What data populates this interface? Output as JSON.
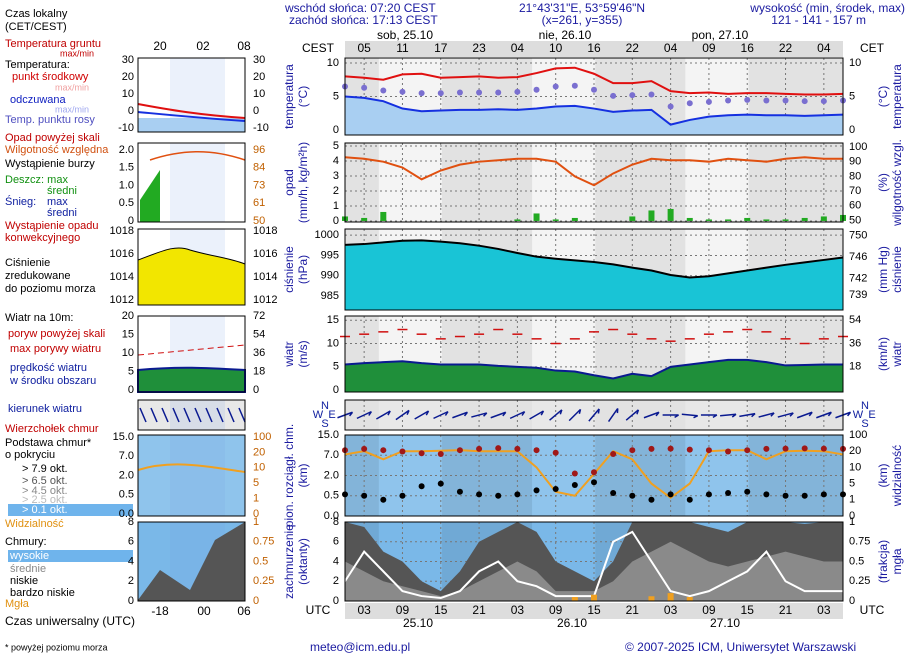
{
  "header": {
    "sunrise": "wschód słońca: 07:20 CEST",
    "sunset": "zachód słońca: 17:13 CEST",
    "coords": "21°43'31\"E, 53°59'46\"N",
    "grid": "(x=261, y=355)",
    "elev_title": "wysokość (min, środek, max)",
    "elev": "121 - 141 - 157 m"
  },
  "time_axis": {
    "local_label": "CEST",
    "local_label_right": "CET",
    "local": [
      "05",
      "11",
      "17",
      "23",
      "04",
      "10",
      "16",
      "22",
      "04",
      "09",
      "16",
      "22",
      "04"
    ],
    "dates": [
      "sob, 25.10",
      "nie, 26.10",
      "pon, 27.10"
    ],
    "utc_label": "UTC",
    "utc": [
      "03",
      "09",
      "15",
      "21",
      "03",
      "09",
      "15",
      "21",
      "03",
      "09",
      "15",
      "21",
      "03"
    ],
    "utc_dates": [
      "25.10",
      "26.10",
      "27.10"
    ]
  },
  "chart_data": [
    {
      "type": "line",
      "ylabel": "temperatura",
      "yunit": "(°C)",
      "y2label": "temperatura",
      "y2unit": "(°C)",
      "ylim": [
        -0.75,
        10.75
      ],
      "yticks": [
        0,
        5,
        10
      ],
      "y2lim": [
        -0.75,
        10.75
      ],
      "y2ticks": [
        0,
        5,
        10
      ],
      "grid": true,
      "series": [
        {
          "style": "area",
          "color": "#a9cff2",
          "line_color": "#1530e0",
          "values": [
            5.0,
            4.8,
            4.3,
            3.2,
            2.8,
            2.9,
            3.0,
            3.0,
            3.1,
            3.0,
            3.2,
            3.5,
            3.6,
            3.2,
            2.7,
            2.9,
            3.0,
            0.8,
            1.5,
            2.0,
            2.2,
            2.3,
            2.2,
            2.2,
            2.1,
            2.2,
            2.3
          ]
        },
        {
          "style": "dots",
          "color": "#7a6fd0",
          "values": [
            6.5,
            6.3,
            5.9,
            5.7,
            5.5,
            5.5,
            5.6,
            5.6,
            5.6,
            5.7,
            6.0,
            6.5,
            6.6,
            6.0,
            5.1,
            5.2,
            5.3,
            3.5,
            4.0,
            4.2,
            4.4,
            4.5,
            4.4,
            4.4,
            4.3,
            4.3,
            4.4
          ]
        },
        {
          "style": "line",
          "color": "#e01010",
          "values": [
            8.0,
            7.8,
            7.5,
            8.3,
            8.4,
            7.8,
            7.9,
            8.0,
            7.8,
            7.9,
            8.5,
            9.2,
            9.3,
            8.4,
            7.0,
            7.0,
            7.3,
            5.8,
            5.5,
            5.6,
            5.4,
            5.5,
            5.5,
            5.4,
            5.3,
            5.3,
            5.4
          ]
        }
      ]
    },
    {
      "type": "combo",
      "ylabel": "opad",
      "yunit": "(mm/h, kg/m²h)",
      "y2label": "wilgotność wzgl.",
      "y2unit": "(%)",
      "ylim": [
        -0.07,
        5.2
      ],
      "yticks": [
        0,
        1,
        2,
        3,
        4,
        5
      ],
      "y2lim": [
        49,
        102.7
      ],
      "y2ticks": [
        50,
        60,
        70,
        80,
        90,
        100
      ],
      "grid": true,
      "series": [
        {
          "style": "bars",
          "color": "#22aa22",
          "values": [
            0.3,
            0.2,
            0.6,
            0,
            0,
            0,
            0,
            0,
            0,
            0.1,
            0.5,
            0.1,
            0.2,
            0,
            0,
            0.3,
            0.7,
            0.8,
            0.2,
            0.1,
            0.1,
            0.2,
            0.1,
            0.1,
            0.2,
            0.3,
            0.4
          ]
        },
        {
          "style": "line",
          "color": "#e05010",
          "axis": "y2",
          "values": [
            93,
            92,
            90,
            86,
            78,
            84,
            88,
            90,
            91,
            92,
            92,
            90,
            80,
            74,
            82,
            88,
            92,
            91,
            91,
            90,
            92,
            91,
            90,
            92,
            93,
            92,
            92
          ]
        }
      ]
    },
    {
      "type": "area",
      "ylabel": "ciśnienie",
      "yunit": "(hPa)",
      "y2label": "ciśnienie",
      "y2unit": "(mm Hg)",
      "ylim": [
        981.6,
        1001.5
      ],
      "yticks": [
        985,
        990,
        995,
        1000
      ],
      "y2lim": [
        736.2,
        751.2
      ],
      "y2ticks": [
        739,
        742,
        746,
        750
      ],
      "grid": true,
      "series": [
        {
          "style": "area",
          "color": "#19c4d6",
          "line_color": "#000000",
          "values": [
            997.6,
            997.8,
            998.2,
            998.6,
            998.7,
            998.4,
            998.0,
            997.4,
            996.6,
            995.6,
            994.7,
            994.2,
            993.8,
            993.4,
            992.8,
            992.0,
            991.3,
            990.2,
            989.6,
            989.9,
            990.6,
            991.3,
            992.0,
            992.7,
            993.3,
            993.9,
            994.5
          ]
        }
      ]
    },
    {
      "type": "line",
      "ylabel": "wiatr",
      "yunit": "(m/s)",
      "y2label": "wiatr",
      "y2unit": "(km/h)",
      "ylim": [
        -0.4,
        15.9
      ],
      "yticks": [
        0,
        5,
        10,
        15
      ],
      "y2lim": [
        -1.44,
        57.24
      ],
      "y2ticks": [
        18,
        36,
        54
      ],
      "grid": true,
      "series": [
        {
          "style": "area",
          "color": "#1f8f3a",
          "line_color": "#0a1a90",
          "values": [
            5.5,
            5.8,
            6.0,
            6.2,
            5.8,
            5.5,
            5.5,
            5.5,
            5.2,
            5.0,
            4.8,
            4.2,
            4.0,
            3.2,
            2.5,
            3.5,
            3.0,
            5.0,
            5.5,
            6.0,
            6.5,
            6.5,
            6.0,
            5.3,
            5.4,
            5.5,
            5.5
          ]
        },
        {
          "style": "dashes",
          "color": "#d01010",
          "values": [
            11.5,
            12,
            12.5,
            13,
            12,
            11,
            11.5,
            12,
            13,
            12,
            11,
            10,
            11,
            12.5,
            13,
            12,
            11,
            10.5,
            11,
            12,
            12.5,
            13,
            12.5,
            11,
            10,
            11,
            11.5
          ]
        }
      ]
    },
    {
      "type": "direction",
      "compass": [
        "N",
        "W",
        "E",
        "S"
      ],
      "series": [
        {
          "color": "#0a1a90",
          "values": [
            250,
            245,
            240,
            235,
            240,
            245,
            250,
            255,
            250,
            245,
            240,
            230,
            225,
            220,
            215,
            230,
            250,
            270,
            275,
            270,
            265,
            260,
            255,
            255,
            250,
            250,
            250
          ]
        }
      ]
    },
    {
      "type": "scatter",
      "ylabel": "pion. rozciągł. chm.",
      "yunit": "(km)",
      "y2label": "widzialność",
      "y2unit": "(km)",
      "scale": "piecewise",
      "ylim": [
        0,
        15
      ],
      "yticks": [
        {
          "value": 0,
          "label": "0.0"
        },
        0.5,
        {
          "value": 2,
          "label": "2.0"
        },
        {
          "value": 7,
          "label": "7.0"
        },
        {
          "value": 15,
          "label": "15.0"
        }
      ],
      "y2lim": [
        0,
        100
      ],
      "y2ticks": [
        0,
        1,
        5,
        10,
        20,
        100
      ],
      "grid": true,
      "series": [
        {
          "style": "line",
          "color": "#f0a020",
          "axis": "y2",
          "values": [
            18,
            20,
            15,
            20,
            20,
            22,
            25,
            20,
            20,
            20,
            10,
            3,
            2,
            8,
            20,
            15,
            5,
            1.5,
            5,
            20,
            25,
            25,
            15,
            20,
            22,
            20,
            18
          ]
        },
        {
          "style": "dots",
          "color": "#a01818",
          "values": [
            9,
            9.5,
            9,
            8.5,
            7.8,
            7.5,
            9,
            9.5,
            9.8,
            9.5,
            9,
            8,
            2.5,
            2.8,
            7.5,
            9,
            9.5,
            9.6,
            9.2,
            9,
            8.5,
            9,
            9.5,
            9.6,
            9.7,
            9.6,
            9.5
          ]
        },
        {
          "style": "dots",
          "color": "#000000",
          "values": [
            0.6,
            0.5,
            0.4,
            0.5,
            1.2,
            1.4,
            0.8,
            0.6,
            0.5,
            0.6,
            0.9,
            1.0,
            1.3,
            1.5,
            0.7,
            0.5,
            0.4,
            0.6,
            0.4,
            0.6,
            0.7,
            0.8,
            0.6,
            0.5,
            0.5,
            0.6,
            0.6
          ]
        }
      ]
    },
    {
      "type": "area",
      "ylabel": "zachmurzenie",
      "yunit": "(oktanty)",
      "y2label": "mgła",
      "y2unit": "(frakcja)",
      "ylim": [
        0,
        8
      ],
      "yticks": [
        0,
        2,
        4,
        6,
        8
      ],
      "y2lim": [
        0,
        1
      ],
      "y2ticks": [
        0,
        0.25,
        0.5,
        0.75,
        1
      ],
      "grid": true,
      "series": [
        {
          "style": "area",
          "color": "#555555",
          "values": [
            8,
            7.5,
            5,
            4,
            2,
            1,
            3,
            6,
            7,
            8,
            7,
            4,
            3,
            2,
            4,
            8,
            8,
            8,
            8,
            7.5,
            7,
            8,
            8,
            8,
            7.8,
            8,
            8
          ]
        },
        {
          "style": "area",
          "color": "#8a8a8a",
          "values": [
            4,
            3,
            2,
            1.5,
            1,
            0.5,
            1,
            2,
            3,
            4,
            3,
            1,
            1,
            1,
            2,
            4,
            5,
            6,
            5,
            4,
            3.5,
            4,
            4.5,
            5,
            4.5,
            4,
            4
          ]
        },
        {
          "style": "line",
          "color": "#ffffff",
          "values": [
            2,
            5,
            3,
            1,
            0.5,
            0.3,
            1,
            3,
            4,
            2,
            1.5,
            0.5,
            0.5,
            0.5,
            6,
            7,
            4,
            1,
            0.5,
            1,
            2,
            3,
            5,
            2,
            1,
            1,
            1
          ]
        },
        {
          "style": "bars",
          "color": "#f0a020",
          "axis": "y2",
          "values": [
            0,
            0,
            0,
            0,
            0,
            0,
            0,
            0,
            0,
            0,
            0,
            0,
            0.05,
            0.08,
            0,
            0,
            0.06,
            0.1,
            0.05,
            0,
            0,
            0,
            0,
            0,
            0,
            0,
            0
          ]
        }
      ]
    }
  ],
  "legend": {
    "local_time": [
      "Czas lokalny",
      "(CET/CEST)"
    ],
    "local_ticks": [
      "20",
      "02",
      "08"
    ],
    "temp": {
      "ground": "Temperatura gruntu",
      "ground_mm": "max/min",
      "title": "Temperatura:",
      "mid": "punkt środkowy",
      "mid_mm": "max/min",
      "feels": "odczuwana",
      "feels_mm": "max/min",
      "dew": "Temp. punktu rosy",
      "left": [
        "30",
        "20",
        "10",
        "0",
        "-10"
      ],
      "right": [
        "30",
        "20",
        "10",
        "0",
        "-10"
      ]
    },
    "rain": {
      "over": "Opad powyżej skali",
      "rh": "Wilgotność względna",
      "storm": "Wystąpienie burzy",
      "rain_max": "Deszcz: max",
      "rain_avg": "średni",
      "snow": "Śnieg:",
      "snow_max": "max",
      "snow_avg": "średni",
      "conv1": "Wystąpienie opadu",
      "conv2": "konwekcyjnego",
      "left": [
        "2.0",
        "1.5",
        "1.0",
        "0.5",
        "0"
      ],
      "right": [
        "96",
        "84",
        "73",
        "61",
        "50"
      ]
    },
    "pressure": {
      "l1": "Ciśnienie",
      "l2": "zredukowane",
      "l3": "do poziomu morza",
      "left": [
        "1018",
        "1016",
        "1014",
        "1012"
      ],
      "right": [
        "1018",
        "1016",
        "1014",
        "1012"
      ]
    },
    "wind": {
      "title": "Wiatr na 10m:",
      "over": "poryw powyżej skali",
      "gust": "max porywy wiatru",
      "speed1": "prędkość wiatru",
      "speed2": "w środku obszaru",
      "left": [
        "20",
        "15",
        "10",
        "5",
        "0"
      ],
      "right": [
        "72",
        "54",
        "36",
        "18",
        "0"
      ]
    },
    "direction": "kierunek wiatru",
    "cbase": {
      "top": "Wierzchołek chmur",
      "base1": "Podstawa chmur*",
      "base2": "o pokryciu",
      "o79": "> 7.9 okt.",
      "o65": "> 6.5 okt.",
      "o45": "> 4.5 okt.",
      "o25": "> 2.5 okt.",
      "o01": "> 0.1 okt.",
      "vis": "Widzialność",
      "left": [
        "15.0",
        "7.0",
        "2.0",
        "0.5",
        "0.0"
      ],
      "right": [
        "100",
        "20",
        "10",
        "5",
        "1",
        "0"
      ]
    },
    "clouds": {
      "title": "Chmury:",
      "high": "wysokie",
      "mid": "średnie",
      "low": "niskie",
      "vlow": "bardzo niskie",
      "fog": "Mgła",
      "left": [
        "8",
        "6",
        "4",
        "2",
        "0"
      ],
      "right": [
        "1",
        "0.75",
        "0.5",
        "0.25",
        "0"
      ]
    },
    "utc_ticks": [
      "-18",
      "00",
      "06"
    ],
    "utc_time": "Czas uniwersalny (UTC)",
    "note": "* powyżej poziomu morza"
  },
  "footer": {
    "email": "meteo@icm.edu.pl",
    "copyright": "© 2007-2025 ICM, Uniwersytet Warszawski"
  }
}
